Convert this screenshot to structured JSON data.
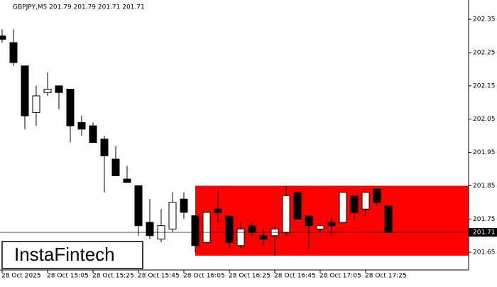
{
  "chart_data": {
    "type": "candlestick",
    "title": "GBPJPY,M5  201.79 201.79 201.71 201.71",
    "logo": "InstaFintech",
    "categories": [
      "28 Oct 2025",
      null,
      null,
      null,
      "28 Oct 15:05",
      null,
      null,
      null,
      "28 Oct 15:25",
      null,
      null,
      null,
      "28 Oct 15:45",
      null,
      null,
      null,
      "28 Oct 16:05",
      null,
      null,
      null,
      "28 Oct 16:25",
      null,
      null,
      null,
      "28 Oct 16:45",
      null,
      null,
      null,
      "28 Oct 17:05",
      null,
      null,
      null,
      "28 Oct 17:25",
      null,
      null
    ],
    "open": [
      202.3,
      202.28,
      202.21,
      202.07,
      202.13,
      202.15,
      202.14,
      202.04,
      202.03,
      201.99,
      201.93,
      201.87,
      201.85,
      201.74,
      201.69,
      201.72,
      201.81,
      201.76,
      201.68,
      201.78,
      201.76,
      201.67,
      201.73,
      201.7,
      201.7,
      201.71,
      201.83,
      201.76,
      201.72,
      201.74,
      201.74,
      201.82,
      201.78,
      201.84,
      201.79
    ],
    "high": [
      202.32,
      202.32,
      202.21,
      202.15,
      202.19,
      202.15,
      202.14,
      202.06,
      202.04,
      202.0,
      201.97,
      201.91,
      201.85,
      201.81,
      201.78,
      201.83,
      201.83,
      201.76,
      201.77,
      201.84,
      201.76,
      201.74,
      201.74,
      201.72,
      201.73,
      201.85,
      201.83,
      201.76,
      201.73,
      201.76,
      201.83,
      201.82,
      201.83,
      201.84,
      201.79
    ],
    "low": [
      202.28,
      202.21,
      202.02,
      202.03,
      202.12,
      202.08,
      201.98,
      202.0,
      201.98,
      201.83,
      201.88,
      201.86,
      201.7,
      201.69,
      201.68,
      201.71,
      201.75,
      201.65,
      201.68,
      201.74,
      201.66,
      201.66,
      201.7,
      201.67,
      201.64,
      201.7,
      201.75,
      201.66,
      201.71,
      201.7,
      201.74,
      201.75,
      201.76,
      201.79,
      201.71
    ],
    "close": [
      202.29,
      202.22,
      202.06,
      202.12,
      202.14,
      202.13,
      202.03,
      202.02,
      201.98,
      201.94,
      201.88,
      201.86,
      201.73,
      201.7,
      201.73,
      201.8,
      201.77,
      201.67,
      201.77,
      201.77,
      201.68,
      201.72,
      201.71,
      201.69,
      201.72,
      201.82,
      201.75,
      201.73,
      201.73,
      201.73,
      201.83,
      201.77,
      201.83,
      201.8,
      201.71
    ],
    "up_color": "#ffffff",
    "down_color": "#000000",
    "zone": {
      "high": 201.85,
      "low": 201.64,
      "color": "#ff0000"
    },
    "last_price": 201.71,
    "ylim": [
      201.597,
      202.408
    ],
    "yticks": [
      201.65,
      201.75,
      201.85,
      201.95,
      202.05,
      202.15,
      202.25,
      202.35
    ]
  }
}
